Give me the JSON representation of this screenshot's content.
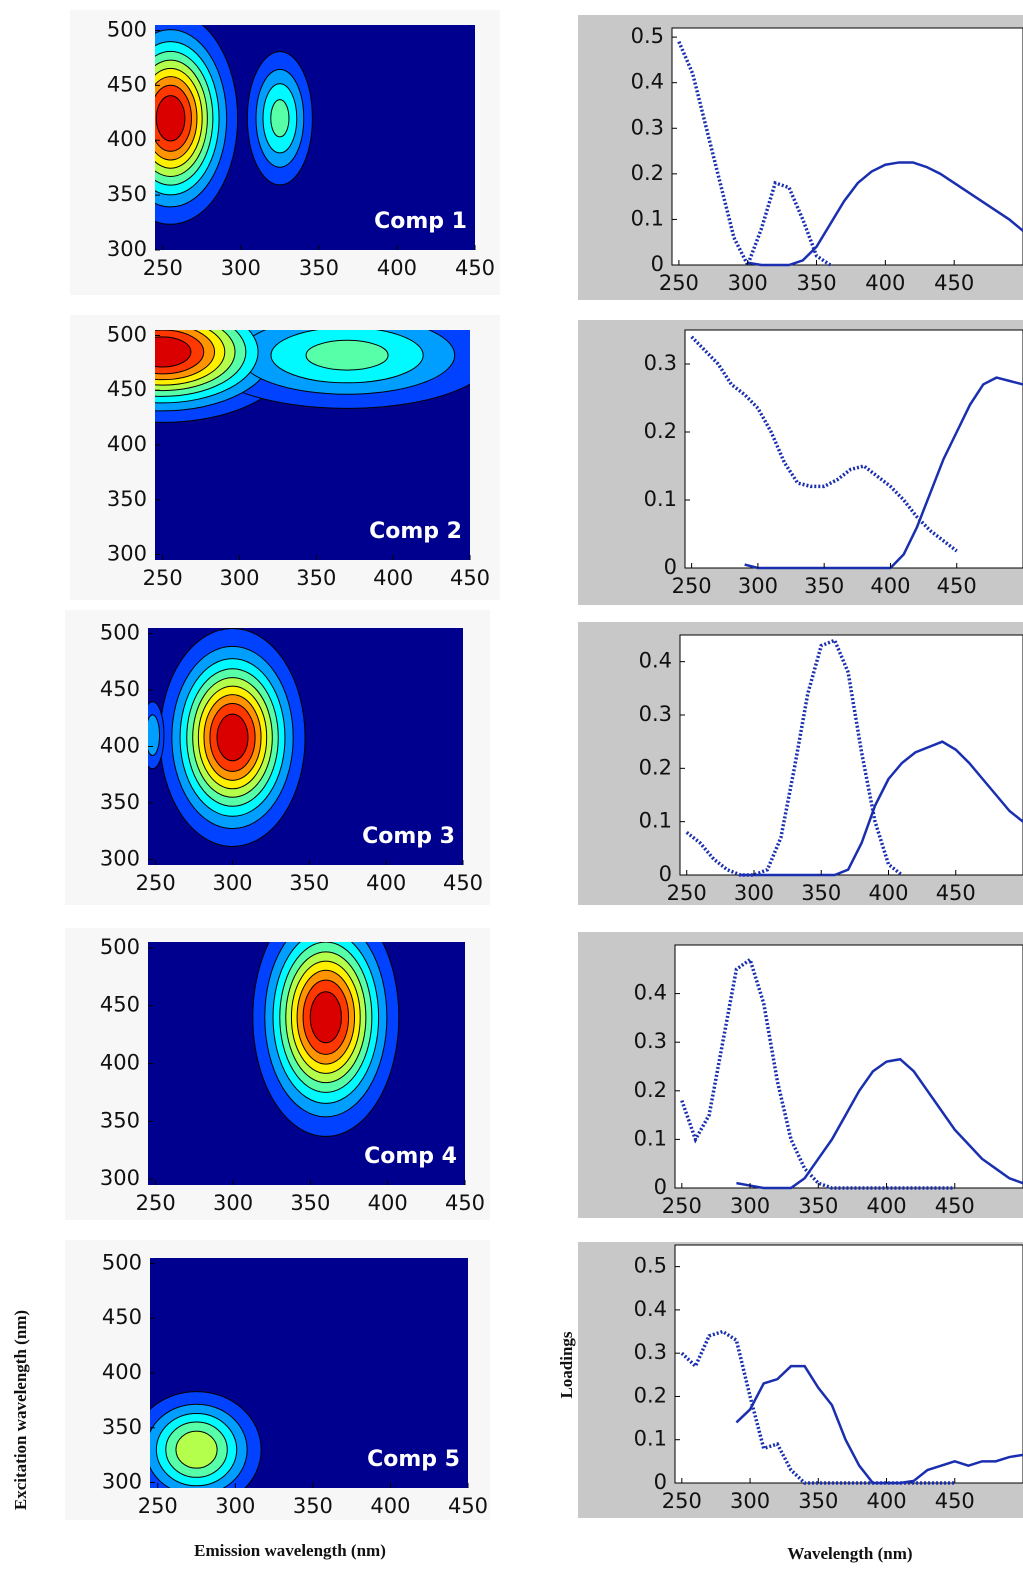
{
  "axis_labels": {
    "excitation": "Excitation wavelength (nm)",
    "emission": "Emission wavelength (nm)",
    "loadings": "Loadings",
    "wavelength": "Wavelength (nm)"
  },
  "chart_data": [
    {
      "type": "contour",
      "annotation": "Comp 1",
      "xlim": [
        245,
        450
      ],
      "ylim": [
        300,
        505
      ],
      "xticks": [
        250,
        300,
        350,
        400,
        450
      ],
      "yticks": [
        300,
        350,
        400,
        450,
        500
      ],
      "peaks": [
        {
          "x": 255,
          "y": 420,
          "sx": 20,
          "sy": 45,
          "amplitude": 1
        },
        {
          "x": 325,
          "y": 420,
          "sx": 12,
          "sy": 35,
          "amplitude": 0.45
        }
      ]
    },
    {
      "type": "contour",
      "annotation": "Comp 2",
      "xlim": [
        245,
        450
      ],
      "ylim": [
        295,
        505
      ],
      "xticks": [
        250,
        300,
        350,
        400,
        450
      ],
      "yticks": [
        300,
        350,
        400,
        450,
        500
      ],
      "peaks": [
        {
          "x": 250,
          "y": 485,
          "sx": 40,
          "sy": 30,
          "amplitude": 1
        },
        {
          "x": 370,
          "y": 482,
          "sx": 55,
          "sy": 28,
          "amplitude": 0.45
        }
      ]
    },
    {
      "type": "contour",
      "annotation": "Comp 3",
      "xlim": [
        245,
        450
      ],
      "ylim": [
        295,
        505
      ],
      "xticks": [
        250,
        300,
        350,
        400,
        450
      ],
      "yticks": [
        300,
        350,
        400,
        450,
        500
      ],
      "peaks": [
        {
          "x": 300,
          "y": 408,
          "sx": 22,
          "sy": 45,
          "amplitude": 1
        },
        {
          "x": 248,
          "y": 410,
          "sx": 5,
          "sy": 20,
          "amplitude": 0.3
        }
      ]
    },
    {
      "type": "contour",
      "annotation": "Comp 4",
      "xlim": [
        245,
        450
      ],
      "ylim": [
        295,
        505
      ],
      "xticks": [
        250,
        300,
        350,
        400,
        450
      ],
      "yticks": [
        300,
        350,
        400,
        450,
        500
      ],
      "peaks": [
        {
          "x": 360,
          "y": 440,
          "sx": 22,
          "sy": 48,
          "amplitude": 1
        }
      ]
    },
    {
      "type": "contour",
      "annotation": "Comp 5",
      "xlim": [
        245,
        450
      ],
      "ylim": [
        295,
        505
      ],
      "xticks": [
        250,
        300,
        350,
        400,
        450
      ],
      "yticks": [
        300,
        350,
        400,
        450,
        500
      ],
      "peaks": [
        {
          "x": 275,
          "y": 330,
          "sx": 22,
          "sy": 28,
          "amplitude": 0.6
        }
      ]
    },
    {
      "type": "line",
      "xlim": [
        245,
        500
      ],
      "ylim": [
        0,
        0.52
      ],
      "xticks": [
        250,
        300,
        350,
        400,
        450
      ],
      "yticks": [
        0,
        0.1,
        0.2,
        0.3,
        0.4,
        0.5
      ],
      "x": [
        250,
        260,
        270,
        280,
        290,
        300,
        310,
        320,
        330,
        340,
        350,
        360,
        370,
        380,
        390,
        400,
        410,
        420,
        430,
        440,
        450,
        460,
        470,
        480,
        490,
        500
      ],
      "series": [
        {
          "style": "dotted",
          "color": "#1a2fb0",
          "values": [
            0.49,
            0.42,
            0.3,
            0.18,
            0.06,
            0,
            0.08,
            0.18,
            0.17,
            0.1,
            0.02,
            0,
            null,
            null,
            null,
            null,
            null,
            null,
            null,
            null,
            null,
            null,
            null,
            null,
            null,
            null
          ]
        },
        {
          "style": "solid",
          "color": "#1a2fb0",
          "values": [
            null,
            null,
            null,
            null,
            null,
            0.005,
            0,
            0,
            0,
            0.01,
            0.04,
            0.09,
            0.14,
            0.18,
            0.205,
            0.22,
            0.225,
            0.225,
            0.215,
            0.2,
            0.18,
            0.16,
            0.14,
            0.12,
            0.1,
            0.075
          ]
        }
      ]
    },
    {
      "type": "line",
      "xlim": [
        245,
        500
      ],
      "ylim": [
        0,
        0.35
      ],
      "xticks": [
        250,
        300,
        350,
        400,
        450
      ],
      "yticks": [
        0,
        0.1,
        0.2,
        0.3
      ],
      "x": [
        250,
        260,
        270,
        280,
        290,
        300,
        310,
        320,
        330,
        340,
        350,
        360,
        370,
        380,
        390,
        400,
        410,
        420,
        430,
        440,
        450,
        460,
        470,
        480,
        490,
        500
      ],
      "series": [
        {
          "style": "dotted",
          "color": "#1a2fb0",
          "values": [
            0.34,
            0.32,
            0.3,
            0.27,
            0.255,
            0.235,
            0.2,
            0.155,
            0.125,
            0.12,
            0.12,
            0.13,
            0.145,
            0.15,
            0.135,
            0.12,
            0.1,
            0.075,
            0.055,
            0.04,
            0.025,
            null,
            null,
            null,
            null,
            null
          ]
        },
        {
          "style": "solid",
          "color": "#1a2fb0",
          "values": [
            null,
            null,
            null,
            null,
            0.005,
            0,
            0,
            0,
            0,
            0,
            0,
            0,
            0,
            0,
            0,
            0,
            0.02,
            0.06,
            0.11,
            0.16,
            0.2,
            0.24,
            0.27,
            0.28,
            0.275,
            0.27
          ]
        }
      ]
    },
    {
      "type": "line",
      "xlim": [
        245,
        500
      ],
      "ylim": [
        0,
        0.45
      ],
      "xticks": [
        250,
        300,
        350,
        400,
        450
      ],
      "yticks": [
        0,
        0.1,
        0.2,
        0.3,
        0.4
      ],
      "x": [
        250,
        260,
        270,
        280,
        290,
        300,
        310,
        320,
        330,
        340,
        350,
        360,
        370,
        380,
        390,
        400,
        410,
        420,
        430,
        440,
        450,
        460,
        470,
        480,
        490,
        500
      ],
      "series": [
        {
          "style": "dotted",
          "color": "#1a2fb0",
          "values": [
            0.08,
            0.06,
            0.03,
            0.01,
            0,
            0,
            0.01,
            0.07,
            0.2,
            0.34,
            0.43,
            0.44,
            0.38,
            0.23,
            0.1,
            0.02,
            0,
            null,
            null,
            null,
            null,
            null,
            null,
            null,
            null,
            null
          ]
        },
        {
          "style": "solid",
          "color": "#1a2fb0",
          "values": [
            null,
            null,
            null,
            null,
            0,
            0,
            0,
            0,
            0,
            0,
            0,
            0,
            0.01,
            0.06,
            0.13,
            0.18,
            0.21,
            0.23,
            0.24,
            0.25,
            0.235,
            0.21,
            0.18,
            0.15,
            0.12,
            0.1
          ]
        }
      ]
    },
    {
      "type": "line",
      "xlim": [
        245,
        500
      ],
      "ylim": [
        0,
        0.5
      ],
      "xticks": [
        250,
        300,
        350,
        400,
        450
      ],
      "yticks": [
        0,
        0.1,
        0.2,
        0.3,
        0.4
      ],
      "x": [
        250,
        260,
        270,
        280,
        290,
        300,
        310,
        320,
        330,
        340,
        350,
        360,
        370,
        380,
        390,
        400,
        410,
        420,
        430,
        440,
        450,
        460,
        470,
        480,
        490,
        500
      ],
      "series": [
        {
          "style": "dotted",
          "color": "#1a2fb0",
          "values": [
            0.18,
            0.1,
            0.15,
            0.3,
            0.45,
            0.47,
            0.38,
            0.22,
            0.1,
            0.04,
            0.01,
            0,
            0,
            0,
            0,
            0,
            0,
            0,
            0,
            0,
            0,
            null,
            null,
            null,
            null,
            null
          ]
        },
        {
          "style": "solid",
          "color": "#1a2fb0",
          "values": [
            null,
            null,
            null,
            null,
            0.01,
            0.005,
            0,
            0,
            0,
            0.02,
            0.06,
            0.1,
            0.15,
            0.2,
            0.24,
            0.26,
            0.265,
            0.24,
            0.2,
            0.16,
            0.12,
            0.09,
            0.06,
            0.04,
            0.02,
            0.01
          ]
        }
      ]
    },
    {
      "type": "line",
      "xlim": [
        245,
        500
      ],
      "ylim": [
        0,
        0.55
      ],
      "xticks": [
        250,
        300,
        350,
        400,
        450
      ],
      "yticks": [
        0,
        0.1,
        0.2,
        0.3,
        0.4,
        0.5
      ],
      "x": [
        250,
        260,
        270,
        280,
        290,
        300,
        310,
        320,
        330,
        340,
        350,
        360,
        370,
        380,
        390,
        400,
        410,
        420,
        430,
        440,
        450,
        460,
        470,
        480,
        490,
        500
      ],
      "series": [
        {
          "style": "dotted",
          "color": "#1a2fb0",
          "values": [
            0.3,
            0.27,
            0.34,
            0.35,
            0.33,
            0.2,
            0.08,
            0.09,
            0.03,
            0,
            0,
            0,
            0,
            0,
            0,
            0,
            0,
            0,
            0,
            0,
            0,
            null,
            null,
            null,
            null,
            null
          ]
        },
        {
          "style": "solid",
          "color": "#1a2fb0",
          "values": [
            null,
            null,
            null,
            null,
            0.14,
            0.17,
            0.23,
            0.24,
            0.27,
            0.27,
            0.22,
            0.18,
            0.1,
            0.04,
            0,
            0,
            0,
            0.005,
            0.03,
            0.04,
            0.05,
            0.04,
            0.05,
            0.05,
            0.06,
            0.065
          ]
        }
      ]
    }
  ]
}
